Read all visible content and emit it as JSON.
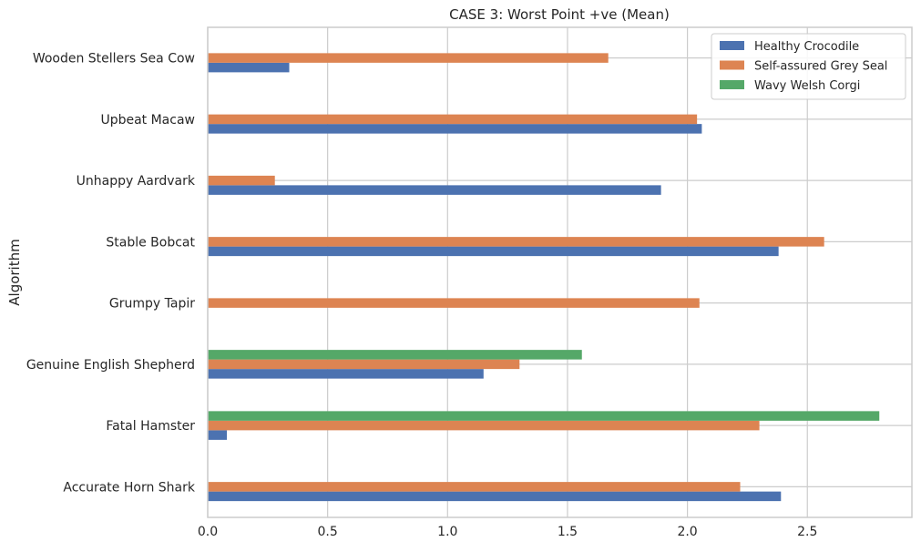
{
  "chart_data": {
    "type": "bar",
    "orientation": "horizontal",
    "title": "CASE 3: Worst Point +ve (Mean)",
    "xlabel": "",
    "ylabel": "Algorithm",
    "xlim": [
      0,
      2.94
    ],
    "xticks": [
      0.0,
      0.5,
      1.0,
      1.5,
      2.0,
      2.5
    ],
    "xtick_labels": [
      "0.0",
      "0.5",
      "1.0",
      "1.5",
      "2.0",
      "2.5"
    ],
    "grid": true,
    "legend_position": "top-right",
    "categories": [
      "Accurate Horn Shark",
      "Fatal Hamster",
      "Genuine English Shepherd",
      "Grumpy Tapir",
      "Stable Bobcat",
      "Unhappy Aardvark",
      "Upbeat Macaw",
      "Wooden Stellers Sea Cow"
    ],
    "series": [
      {
        "name": "Healthy Crocodile",
        "color": "#4c72b0",
        "values": [
          2.39,
          0.08,
          1.15,
          null,
          2.38,
          1.89,
          2.06,
          0.34
        ]
      },
      {
        "name": "Self-assured Grey Seal",
        "color": "#dd8452",
        "values": [
          2.22,
          2.3,
          1.3,
          2.05,
          2.57,
          0.28,
          2.04,
          1.67
        ]
      },
      {
        "name": "Wavy Welsh Corgi",
        "color": "#55a868",
        "values": [
          null,
          2.8,
          1.56,
          null,
          null,
          null,
          null,
          null
        ]
      }
    ]
  }
}
